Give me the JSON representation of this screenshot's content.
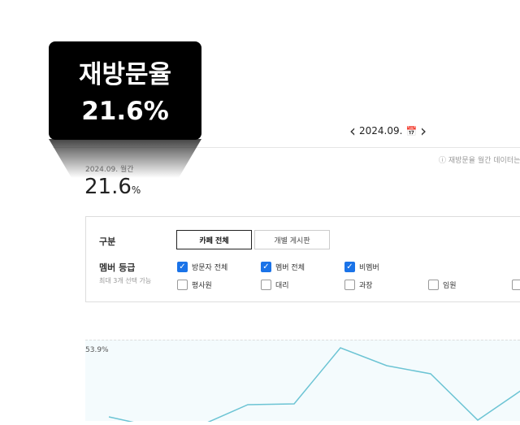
{
  "tooltip": {
    "title": "재방문율",
    "value": "21.6%"
  },
  "nav": {
    "prev_icon": "chevron-left-icon",
    "date": "2024.09.",
    "calendar_icon": "calendar-icon",
    "next_icon": "chevron-right-icon"
  },
  "note": "ⓘ 재방문율 월간 데이터는",
  "summary": {
    "period": "2024.09. 월간",
    "value": "21.6",
    "unit": "%"
  },
  "filter": {
    "category_label": "구분",
    "category_buttons": [
      {
        "label": "카페 전체",
        "selected": true
      },
      {
        "label": "개별 게시판",
        "selected": false
      }
    ],
    "grade_label": "멤버 등급",
    "grade_sub": "최대 3개 선택 가능",
    "checkboxes": [
      {
        "label": "방문자 전체",
        "checked": true
      },
      {
        "label": "멤버 전체",
        "checked": true
      },
      {
        "label": "비멤버",
        "checked": true
      },
      {
        "label": "평사원",
        "checked": false
      },
      {
        "label": "대리",
        "checked": false
      },
      {
        "label": "과장",
        "checked": false
      },
      {
        "label": "임원",
        "checked": false
      },
      {
        "label": "",
        "checked": false
      }
    ]
  },
  "chart": {
    "max_label": "53.9%",
    "line_color": "#6cc4d4"
  }
}
